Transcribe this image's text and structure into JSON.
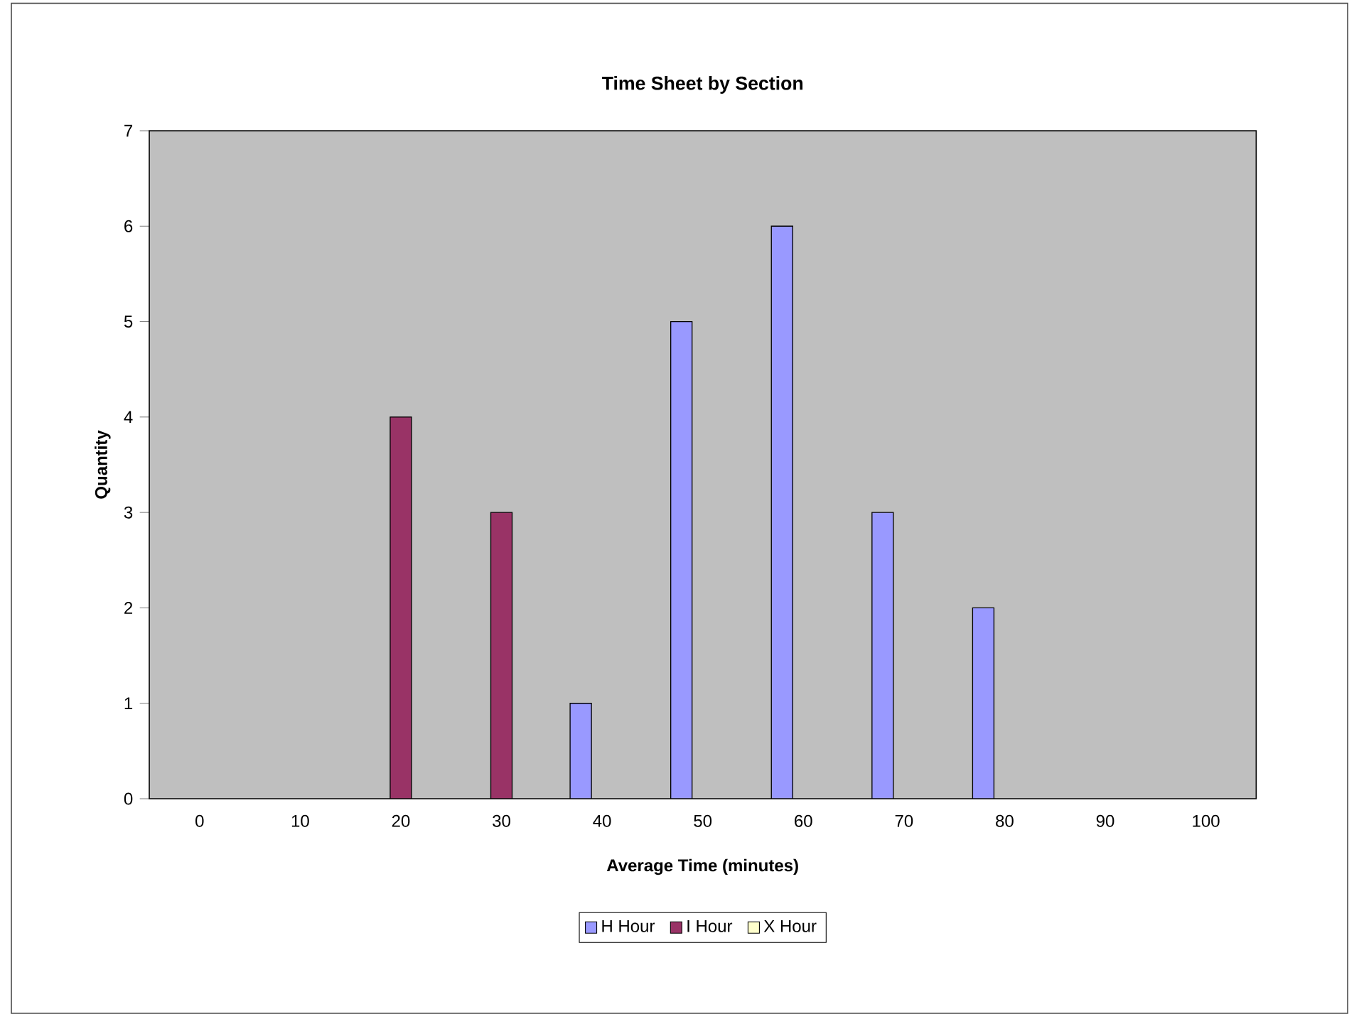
{
  "chart_data": {
    "type": "bar",
    "title": "Time Sheet by Section",
    "xlabel": "Average Time (minutes)",
    "ylabel": "Quantity",
    "categories": [
      "0",
      "10",
      "20",
      "30",
      "40",
      "50",
      "60",
      "70",
      "80",
      "90",
      "100"
    ],
    "series": [
      {
        "name": "H Hour",
        "color": "#9999ff",
        "values": [
          null,
          null,
          null,
          null,
          1,
          5,
          6,
          3,
          2,
          null,
          null
        ]
      },
      {
        "name": "I Hour",
        "color": "#993366",
        "values": [
          null,
          null,
          4,
          3,
          null,
          null,
          null,
          null,
          null,
          null,
          null
        ]
      },
      {
        "name": "X Hour",
        "color": "#ffffcc",
        "values": [
          null,
          null,
          null,
          null,
          null,
          null,
          null,
          null,
          null,
          null,
          null
        ]
      }
    ],
    "ylim": [
      0,
      7
    ],
    "yticks": [
      0,
      1,
      2,
      3,
      4,
      5,
      6,
      7
    ],
    "grid": false,
    "legend": "bottom"
  }
}
